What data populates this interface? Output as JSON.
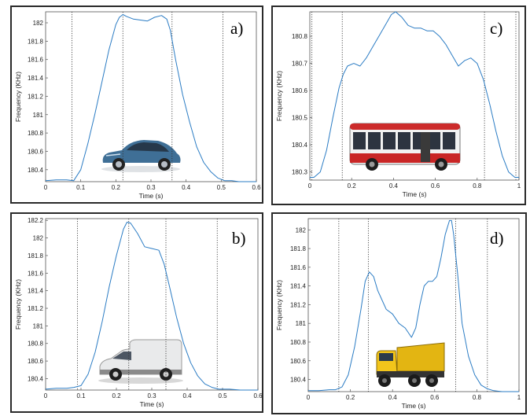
{
  "chart_data": [
    {
      "type": "line",
      "tag": "a)",
      "xlabel": "Time (s)",
      "ylabel": "Frequency (KHz)",
      "xlim": [
        0,
        0.6
      ],
      "ylim": [
        180.27,
        182.12
      ],
      "xticks": [
        "0",
        "0.1",
        "0.2",
        "0.3",
        "0.4",
        "0.5",
        "0.6"
      ],
      "xtick_values": [
        0,
        0.1,
        0.2,
        0.3,
        0.4,
        0.5,
        0.6
      ],
      "yticks": [
        "180.4",
        "180.6",
        "180.8",
        "181",
        "181.2",
        "181.4",
        "181.6",
        "181.8",
        "182"
      ],
      "ytick_values": [
        180.4,
        180.6,
        180.8,
        181.0,
        181.2,
        181.4,
        181.6,
        181.8,
        182.0
      ],
      "vlines": [
        0.075,
        0.22,
        0.36,
        0.505
      ],
      "vehicle": "car-icon",
      "series": [
        {
          "color": "#2b7cc4",
          "x": [
            0,
            0.03,
            0.06,
            0.08,
            0.1,
            0.12,
            0.14,
            0.16,
            0.18,
            0.2,
            0.21,
            0.22,
            0.23,
            0.25,
            0.27,
            0.29,
            0.31,
            0.33,
            0.345,
            0.355,
            0.37,
            0.39,
            0.41,
            0.43,
            0.45,
            0.47,
            0.49,
            0.51,
            0.53,
            0.55,
            0.6
          ],
          "y": [
            180.28,
            180.29,
            180.29,
            180.28,
            180.4,
            180.68,
            181.0,
            181.35,
            181.7,
            181.98,
            182.06,
            182.09,
            182.07,
            182.04,
            182.03,
            182.02,
            182.06,
            182.08,
            182.04,
            181.92,
            181.6,
            181.22,
            180.92,
            180.65,
            180.48,
            180.38,
            180.31,
            180.28,
            180.28,
            180.27,
            180.27
          ]
        }
      ]
    },
    {
      "type": "line",
      "tag": "c)",
      "xlabel": "Time (s)",
      "ylabel": "Frequency (KHz)",
      "xlim": [
        0,
        1
      ],
      "ylim": [
        180.27,
        180.89
      ],
      "xticks": [
        "0",
        "0.2",
        "0.4",
        "0.6",
        "0.8",
        "1"
      ],
      "xtick_values": [
        0,
        0.2,
        0.4,
        0.6,
        0.8,
        1
      ],
      "yticks": [
        "180.3",
        "180.4",
        "180.5",
        "180.6",
        "180.7",
        "180.8"
      ],
      "ytick_values": [
        180.3,
        180.4,
        180.5,
        180.6,
        180.7,
        180.8
      ],
      "vlines": [
        0.01,
        0.155,
        0.835,
        0.985
      ],
      "vehicle": "bus-icon",
      "series": [
        {
          "color": "#2b7cc4",
          "x": [
            0,
            0.02,
            0.05,
            0.08,
            0.11,
            0.14,
            0.16,
            0.18,
            0.21,
            0.24,
            0.27,
            0.3,
            0.33,
            0.36,
            0.39,
            0.41,
            0.44,
            0.47,
            0.5,
            0.53,
            0.56,
            0.59,
            0.62,
            0.65,
            0.68,
            0.71,
            0.74,
            0.77,
            0.8,
            0.83,
            0.86,
            0.89,
            0.92,
            0.95,
            0.98,
            1
          ],
          "y": [
            180.28,
            180.28,
            180.3,
            180.38,
            180.5,
            180.61,
            180.66,
            180.69,
            180.7,
            180.69,
            180.72,
            180.76,
            180.8,
            180.84,
            180.88,
            180.89,
            180.87,
            180.84,
            180.83,
            180.83,
            180.82,
            180.82,
            180.8,
            180.77,
            180.73,
            180.69,
            180.71,
            180.72,
            180.7,
            180.64,
            180.55,
            180.45,
            180.36,
            180.3,
            180.28,
            180.28
          ]
        }
      ]
    },
    {
      "type": "line",
      "tag": "b)",
      "xlabel": "Time (s)",
      "ylabel": "Frequency (KHz)",
      "xlim": [
        0,
        0.6
      ],
      "ylim": [
        180.27,
        182.22
      ],
      "xticks": [
        "0",
        "0.1",
        "0.2",
        "0.3",
        "0.4",
        "0.5",
        "0.6"
      ],
      "xtick_values": [
        0,
        0.1,
        0.2,
        0.3,
        0.4,
        0.5,
        0.6
      ],
      "yticks": [
        "180.4",
        "180.6",
        "180.8",
        "181",
        "181.2",
        "181.4",
        "181.6",
        "181.8",
        "182",
        "182.2"
      ],
      "ytick_values": [
        180.4,
        180.6,
        180.8,
        181.0,
        181.2,
        181.4,
        181.6,
        181.8,
        182.0,
        182.2
      ],
      "vlines": [
        0.09,
        0.235,
        0.34,
        0.485
      ],
      "vehicle": "van-icon",
      "series": [
        {
          "color": "#2b7cc4",
          "x": [
            0,
            0.03,
            0.06,
            0.08,
            0.1,
            0.12,
            0.14,
            0.16,
            0.18,
            0.2,
            0.22,
            0.23,
            0.24,
            0.26,
            0.28,
            0.3,
            0.32,
            0.335,
            0.35,
            0.37,
            0.39,
            0.41,
            0.43,
            0.45,
            0.47,
            0.49,
            0.52,
            0.55,
            0.6
          ],
          "y": [
            180.28,
            180.29,
            180.29,
            180.3,
            180.32,
            180.45,
            180.7,
            181.05,
            181.45,
            181.8,
            182.1,
            182.18,
            182.17,
            182.05,
            181.9,
            181.88,
            181.86,
            181.7,
            181.45,
            181.1,
            180.8,
            180.58,
            180.43,
            180.34,
            180.3,
            180.28,
            180.28,
            180.27,
            180.27
          ]
        }
      ]
    },
    {
      "type": "line",
      "tag": "d)",
      "xlabel": "Time (s)",
      "ylabel": "Frequency (KHz)",
      "xlim": [
        0,
        1
      ],
      "ylim": [
        180.27,
        182.12
      ],
      "xticks": [
        "0",
        "0.2",
        "0.4",
        "0.6",
        "0.8",
        "1"
      ],
      "xtick_values": [
        0,
        0.2,
        0.4,
        0.6,
        0.8,
        1
      ],
      "yticks": [
        "180.4",
        "180.6",
        "180.8",
        "181",
        "181.2",
        "181.4",
        "181.6",
        "181.8",
        "182"
      ],
      "ytick_values": [
        180.4,
        180.6,
        180.8,
        181.0,
        181.2,
        181.4,
        181.6,
        181.8,
        182.0
      ],
      "vlines": [
        0.145,
        0.285,
        0.7,
        0.85
      ],
      "vehicle": "truck-icon",
      "series": [
        {
          "color": "#2b7cc4",
          "x": [
            0,
            0.05,
            0.1,
            0.13,
            0.16,
            0.19,
            0.22,
            0.25,
            0.27,
            0.29,
            0.31,
            0.33,
            0.35,
            0.37,
            0.4,
            0.43,
            0.46,
            0.49,
            0.51,
            0.53,
            0.55,
            0.57,
            0.59,
            0.61,
            0.63,
            0.65,
            0.67,
            0.68,
            0.69,
            0.71,
            0.73,
            0.76,
            0.79,
            0.82,
            0.85,
            0.88,
            0.92,
            1
          ],
          "y": [
            180.28,
            180.28,
            180.29,
            180.29,
            180.32,
            180.45,
            180.75,
            181.15,
            181.45,
            181.55,
            181.5,
            181.35,
            181.25,
            181.15,
            181.1,
            181.0,
            180.95,
            180.85,
            180.95,
            181.2,
            181.4,
            181.45,
            181.45,
            181.5,
            181.7,
            181.95,
            182.1,
            182.1,
            181.95,
            181.5,
            181.0,
            180.65,
            180.45,
            180.34,
            180.3,
            180.28,
            180.27,
            180.27
          ]
        }
      ]
    }
  ]
}
